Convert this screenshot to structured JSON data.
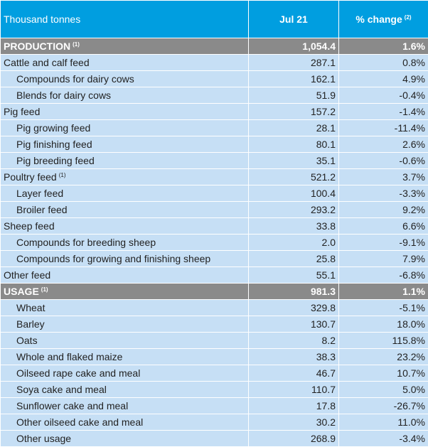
{
  "header": {
    "label": "Thousand tonnes",
    "col_value": "Jul 21",
    "col_change": "% change",
    "col_change_note": "(2)"
  },
  "rows": [
    {
      "label": "PRODUCTION",
      "note": "(1)",
      "value": "1,054.4",
      "change": "1.6%",
      "type": "section"
    },
    {
      "label": "Cattle and calf feed",
      "note": "",
      "value": "287.1",
      "change": "0.8%",
      "type": "group"
    },
    {
      "label": "Compounds for dairy cows",
      "note": "",
      "value": "162.1",
      "change": "4.9%",
      "type": "sub"
    },
    {
      "label": "Blends for dairy cows",
      "note": "",
      "value": "51.9",
      "change": "-0.4%",
      "type": "sub"
    },
    {
      "label": "Pig feed",
      "note": "",
      "value": "157.2",
      "change": "-1.4%",
      "type": "group"
    },
    {
      "label": "Pig growing feed",
      "note": "",
      "value": "28.1",
      "change": "-11.4%",
      "type": "sub"
    },
    {
      "label": "Pig finishing feed",
      "note": "",
      "value": "80.1",
      "change": "2.6%",
      "type": "sub"
    },
    {
      "label": "Pig breeding feed",
      "note": "",
      "value": "35.1",
      "change": "-0.6%",
      "type": "sub"
    },
    {
      "label": "Poultry feed",
      "note": "(1)",
      "value": "521.2",
      "change": "3.7%",
      "type": "group"
    },
    {
      "label": "Layer feed",
      "note": "",
      "value": "100.4",
      "change": "-3.3%",
      "type": "sub"
    },
    {
      "label": "Broiler feed",
      "note": "",
      "value": "293.2",
      "change": "9.2%",
      "type": "sub"
    },
    {
      "label": "Sheep feed",
      "note": "",
      "value": "33.8",
      "change": "6.6%",
      "type": "group"
    },
    {
      "label": "Compounds for breeding sheep",
      "note": "",
      "value": "2.0",
      "change": "-9.1%",
      "type": "sub"
    },
    {
      "label": "Compounds for growing and finishing sheep",
      "note": "",
      "value": "25.8",
      "change": "7.9%",
      "type": "sub"
    },
    {
      "label": "Other feed",
      "note": "",
      "value": "55.1",
      "change": "-6.8%",
      "type": "group"
    },
    {
      "label": "USAGE",
      "note": "(1)",
      "value": "981.3",
      "change": "1.1%",
      "type": "section"
    },
    {
      "label": "Wheat",
      "note": "",
      "value": "329.8",
      "change": "-5.1%",
      "type": "sub"
    },
    {
      "label": "Barley",
      "note": "",
      "value": "130.7",
      "change": "18.0%",
      "type": "sub"
    },
    {
      "label": "Oats",
      "note": "",
      "value": "8.2",
      "change": "115.8%",
      "type": "sub"
    },
    {
      "label": "Whole and flaked maize",
      "note": "",
      "value": "38.3",
      "change": "23.2%",
      "type": "sub"
    },
    {
      "label": "Oilseed rape cake and meal",
      "note": "",
      "value": "46.7",
      "change": "10.7%",
      "type": "sub"
    },
    {
      "label": "Soya cake and meal",
      "note": "",
      "value": "110.7",
      "change": "5.0%",
      "type": "sub"
    },
    {
      "label": "Sunflower cake and meal",
      "note": "",
      "value": "17.8",
      "change": "-26.7%",
      "type": "sub"
    },
    {
      "label": "Other oilseed cake and meal",
      "note": "",
      "value": "30.2",
      "change": "11.0%",
      "type": "sub"
    },
    {
      "label": "Other usage",
      "note": "",
      "value": "268.9",
      "change": "-3.4%",
      "type": "sub"
    }
  ],
  "colors": {
    "header_bg": "#009ee0",
    "section_bg": "#8a8a8a",
    "row_bg": "#c6dff5"
  }
}
